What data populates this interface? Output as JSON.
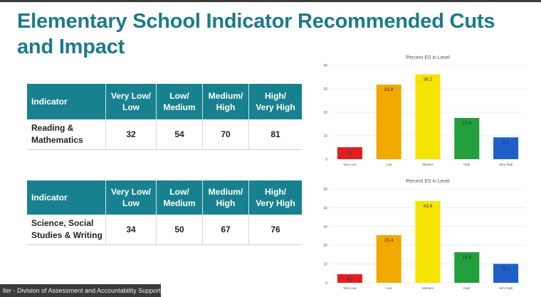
{
  "slide": {
    "title_line1": "Elementary School Indicator Recommended Cuts",
    "title_line2": "and Impact"
  },
  "table1": {
    "headers": [
      "Indicator",
      "Very Low/\nLow",
      "Low/\nMedium",
      "Medium/\nHigh",
      "High/\nVery High"
    ],
    "row": {
      "indicator": "Reading &\nMathematics",
      "values": [
        "32",
        "54",
        "70",
        "81"
      ]
    }
  },
  "table2": {
    "headers": [
      "Indicator",
      "Very Low/\nLow",
      "Low/\nMedium",
      "Medium/\nHigh",
      "High/\nVery High"
    ],
    "row": {
      "indicator": "Science, Social\nStudies & Writing",
      "values": [
        "34",
        "50",
        "67",
        "76"
      ]
    }
  },
  "colors": {
    "header_bg": "#17818f",
    "title": "#1b7a8a",
    "bars": [
      "#e02020",
      "#f2a900",
      "#f5e400",
      "#21a03c",
      "#1f5fc9"
    ]
  },
  "chart_data": [
    {
      "type": "bar",
      "title": "Percent ES in Level",
      "categories": [
        "Very Low",
        "Low",
        "Medium",
        "High",
        "Very High"
      ],
      "values": [
        5.1,
        31.8,
        36.2,
        17.6,
        9.3
      ],
      "ylim": [
        0,
        40
      ],
      "yticks": [
        0,
        10,
        20,
        30,
        40
      ],
      "grid": true,
      "xlabel": "",
      "ylabel": ""
    },
    {
      "type": "bar",
      "title": "Percent ES in Level",
      "categories": [
        "Very Low",
        "Low",
        "Medium",
        "High",
        "Very High"
      ],
      "values": [
        4.6,
        25.4,
        43.6,
        16.3,
        10.1
      ],
      "ylim": [
        0,
        50
      ],
      "yticks": [
        0,
        10,
        20,
        30,
        40,
        50
      ],
      "grid": true,
      "xlabel": "",
      "ylabel": ""
    }
  ],
  "footer": {
    "caption": "ller - Division of Assessment and Accountability Support"
  }
}
